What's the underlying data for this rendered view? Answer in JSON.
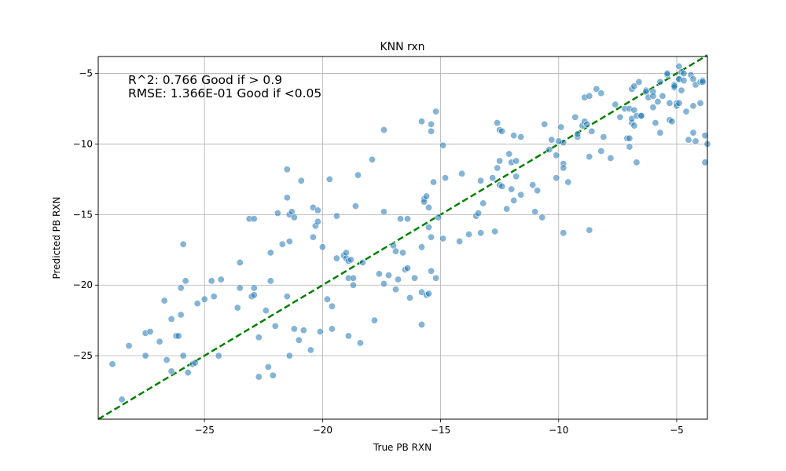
{
  "chart_data": {
    "type": "scatter",
    "title": "KNN rxn",
    "xlabel": "True PB RXN",
    "ylabel": "Predicted PB RXN",
    "xlim": [
      -29.5,
      -3.7
    ],
    "ylim": [
      -29.5,
      -3.8
    ],
    "xticks": [
      -25,
      -20,
      -15,
      -10,
      -5
    ],
    "yticks": [
      -25,
      -20,
      -15,
      -10,
      -5
    ],
    "xtick_labels": [
      "−25",
      "−20",
      "−15",
      "−10",
      "−5"
    ],
    "ytick_labels": [
      "−25",
      "−20",
      "−15",
      "−10",
      "−5"
    ],
    "grid": true,
    "point_color": "#1f77b4",
    "reference_line": {
      "style": "dashed",
      "color": "#008000",
      "from": [
        -29.5,
        -29.5
      ],
      "to": [
        -3.7,
        -3.7
      ]
    },
    "annotations": [
      "R^2: 0.766 Good if > 0.9",
      "RMSE: 1.366E-01 Good if <0.05"
    ],
    "points": [
      [
        -28.9,
        -25.6
      ],
      [
        -28.5,
        -28.1
      ],
      [
        -28.2,
        -24.3
      ],
      [
        -27.5,
        -23.4
      ],
      [
        -27.5,
        -25.0
      ],
      [
        -27.3,
        -23.3
      ],
      [
        -26.9,
        -24.0
      ],
      [
        -26.7,
        -21.1
      ],
      [
        -26.6,
        -25.3
      ],
      [
        -26.4,
        -22.4
      ],
      [
        -26.4,
        -26.1
      ],
      [
        -26.2,
        -23.6
      ],
      [
        -26.1,
        -23.6
      ],
      [
        -26.0,
        -20.2
      ],
      [
        -26.0,
        -22.1
      ],
      [
        -25.9,
        -25.0
      ],
      [
        -25.9,
        -17.1
      ],
      [
        -25.8,
        -19.7
      ],
      [
        -25.7,
        -26.2
      ],
      [
        -25.5,
        -25.6
      ],
      [
        -25.4,
        -25.5
      ],
      [
        -25.3,
        -21.3
      ],
      [
        -25.0,
        -21.0
      ],
      [
        -24.7,
        -19.7
      ],
      [
        -24.6,
        -20.8
      ],
      [
        -24.4,
        -25.0
      ],
      [
        -24.3,
        -19.6
      ],
      [
        -23.6,
        -21.6
      ],
      [
        -23.5,
        -20.2
      ],
      [
        -23.5,
        -18.4
      ],
      [
        -23.1,
        -15.3
      ],
      [
        -23.0,
        -20.8
      ],
      [
        -22.9,
        -20.2
      ],
      [
        -22.9,
        -20.7
      ],
      [
        -22.9,
        -15.3
      ],
      [
        -22.7,
        -23.7
      ],
      [
        -22.7,
        -26.5
      ],
      [
        -22.4,
        -21.8
      ],
      [
        -22.3,
        -25.8
      ],
      [
        -22.2,
        -17.7
      ],
      [
        -22.2,
        -19.7
      ],
      [
        -22.1,
        -26.4
      ],
      [
        -22.0,
        -22.9
      ],
      [
        -21.9,
        -14.9
      ],
      [
        -21.7,
        -17.1
      ],
      [
        -21.5,
        -13.8
      ],
      [
        -21.5,
        -11.8
      ],
      [
        -21.5,
        -20.8
      ],
      [
        -21.4,
        -16.9
      ],
      [
        -21.4,
        -15.0
      ],
      [
        -21.4,
        -25.0
      ],
      [
        -21.3,
        -14.8
      ],
      [
        -21.2,
        -15.2
      ],
      [
        -21.2,
        -23.1
      ],
      [
        -21.0,
        -23.9
      ],
      [
        -20.9,
        -12.6
      ],
      [
        -20.8,
        -23.2
      ],
      [
        -20.5,
        -24.6
      ],
      [
        -20.4,
        -14.5
      ],
      [
        -20.4,
        -16.6
      ],
      [
        -20.3,
        -15.8
      ],
      [
        -20.2,
        -14.7
      ],
      [
        -20.2,
        -15.5
      ],
      [
        -20.1,
        -23.3
      ],
      [
        -20.0,
        -17.3
      ],
      [
        -19.8,
        -21.0
      ],
      [
        -19.7,
        -12.5
      ],
      [
        -19.6,
        -21.5
      ],
      [
        -19.6,
        -23.1
      ],
      [
        -19.4,
        -18.1
      ],
      [
        -19.4,
        -15.1
      ],
      [
        -19.1,
        -17.9
      ],
      [
        -19.0,
        -18.1
      ],
      [
        -19.0,
        -17.7
      ],
      [
        -18.9,
        -18.3
      ],
      [
        -18.9,
        -23.6
      ],
      [
        -18.9,
        -19.5
      ],
      [
        -18.8,
        -18.2
      ],
      [
        -18.7,
        -20.0
      ],
      [
        -18.7,
        -19.5
      ],
      [
        -18.6,
        -14.4
      ],
      [
        -18.5,
        -12.2
      ],
      [
        -18.4,
        -24.1
      ],
      [
        -18.3,
        -18.4
      ],
      [
        -17.9,
        -11.1
      ],
      [
        -17.8,
        -22.5
      ],
      [
        -17.6,
        -19.2
      ],
      [
        -17.4,
        -14.8
      ],
      [
        -17.4,
        -9.0
      ],
      [
        -17.4,
        -19.9
      ],
      [
        -17.2,
        -19.3
      ],
      [
        -17.0,
        -17.2
      ],
      [
        -16.9,
        -17.6
      ],
      [
        -16.9,
        -20.3
      ],
      [
        -16.8,
        -19.6
      ],
      [
        -16.7,
        -15.3
      ],
      [
        -16.6,
        -17.7
      ],
      [
        -16.5,
        -18.9
      ],
      [
        -16.4,
        -18.8
      ],
      [
        -16.4,
        -15.3
      ],
      [
        -16.3,
        -20.9
      ],
      [
        -16.1,
        -19.5
      ],
      [
        -15.8,
        -17.3
      ],
      [
        -15.8,
        -20.5
      ],
      [
        -15.8,
        -22.8
      ],
      [
        -15.8,
        -8.4
      ],
      [
        -15.7,
        -13.9
      ],
      [
        -15.7,
        -14.1
      ],
      [
        -15.6,
        -13.7
      ],
      [
        -15.6,
        -20.7
      ],
      [
        -15.5,
        -14.5
      ],
      [
        -15.5,
        -15.9
      ],
      [
        -15.5,
        -20.6
      ],
      [
        -15.4,
        -16.6
      ],
      [
        -15.4,
        -19.0
      ],
      [
        -15.4,
        -8.6
      ],
      [
        -15.4,
        -9.1
      ],
      [
        -15.3,
        -12.7
      ],
      [
        -15.2,
        -19.5
      ],
      [
        -15.2,
        -7.7
      ],
      [
        -15.1,
        -15.2
      ],
      [
        -14.9,
        -16.7
      ],
      [
        -14.8,
        -12.4
      ],
      [
        -14.9,
        -10.1
      ],
      [
        -14.2,
        -16.9
      ],
      [
        -14.1,
        -12.1
      ],
      [
        -13.8,
        -16.4
      ],
      [
        -13.5,
        -15.1
      ],
      [
        -13.4,
        -14.9
      ],
      [
        -13.3,
        -12.6
      ],
      [
        -13.3,
        -16.3
      ],
      [
        -13.2,
        -14.2
      ],
      [
        -12.7,
        -16.2
      ],
      [
        -12.6,
        -8.5
      ],
      [
        -12.6,
        -11.7
      ],
      [
        -12.5,
        -9.0
      ],
      [
        -12.5,
        -12.9
      ],
      [
        -12.5,
        -11.2
      ],
      [
        -12.4,
        -13.0
      ],
      [
        -12.4,
        -9.1
      ],
      [
        -12.2,
        -14.6
      ],
      [
        -12.1,
        -10.7
      ],
      [
        -12.0,
        -11.3
      ],
      [
        -12.0,
        -13.2
      ],
      [
        -11.9,
        -14.0
      ],
      [
        -11.9,
        -9.4
      ],
      [
        -11.8,
        -12.3
      ],
      [
        -11.6,
        -13.6
      ],
      [
        -11.6,
        -9.5
      ],
      [
        -11.1,
        -12.9
      ],
      [
        -11.0,
        -14.8
      ],
      [
        -10.9,
        -13.3
      ],
      [
        -10.7,
        -15.2
      ],
      [
        -10.6,
        -8.6
      ],
      [
        -10.4,
        -10.4
      ],
      [
        -10.3,
        -9.7
      ],
      [
        -10.1,
        -12.4
      ],
      [
        -10.1,
        -10.8
      ],
      [
        -9.9,
        -8.8
      ],
      [
        -9.8,
        -16.3
      ],
      [
        -9.8,
        -11.4
      ],
      [
        -9.8,
        -11.7
      ],
      [
        -9.8,
        -9.9
      ],
      [
        -9.6,
        -12.7
      ],
      [
        -9.3,
        -8.1
      ],
      [
        -9.2,
        -9.5
      ],
      [
        -9.0,
        -8.7
      ],
      [
        -8.9,
        -6.7
      ],
      [
        -8.9,
        -8.4
      ],
      [
        -8.8,
        -8.6
      ],
      [
        -8.7,
        -6.6
      ],
      [
        -8.7,
        -16.1
      ],
      [
        -8.7,
        -10.9
      ],
      [
        -8.6,
        -9.1
      ],
      [
        -8.4,
        -6.1
      ],
      [
        -8.2,
        -6.4
      ],
      [
        -8.2,
        -10.5
      ],
      [
        -7.8,
        -11.0
      ],
      [
        -7.6,
        -7.2
      ],
      [
        -7.4,
        -8.1
      ],
      [
        -7.2,
        -7.5
      ],
      [
        -7.1,
        -9.6
      ],
      [
        -7.0,
        -9.6
      ],
      [
        -7.0,
        -10.2
      ],
      [
        -7.0,
        -7.5
      ],
      [
        -6.9,
        -8.5
      ],
      [
        -6.9,
        -8.2
      ],
      [
        -6.9,
        -6.1
      ],
      [
        -6.8,
        -7.6
      ],
      [
        -6.8,
        -5.9
      ],
      [
        -6.8,
        -8.7
      ],
      [
        -6.7,
        -8.0
      ],
      [
        -6.7,
        -11.3
      ],
      [
        -6.6,
        -5.6
      ],
      [
        -6.5,
        -8.0
      ],
      [
        -6.5,
        -8.0
      ],
      [
        -6.3,
        -6.2
      ],
      [
        -6.3,
        -6.3
      ],
      [
        -6.2,
        -6.7
      ],
      [
        -6.0,
        -7.4
      ],
      [
        -6.0,
        -6.3
      ],
      [
        -6.0,
        -6.6
      ],
      [
        -5.9,
        -8.5
      ],
      [
        -5.8,
        -7.0
      ],
      [
        -5.7,
        -5.6
      ],
      [
        -5.7,
        -9.2
      ],
      [
        -5.6,
        -6.6
      ],
      [
        -5.4,
        -5.1
      ],
      [
        -5.4,
        -5.0
      ],
      [
        -5.3,
        -8.3
      ],
      [
        -5.3,
        -7.1
      ],
      [
        -5.2,
        -8.4
      ],
      [
        -5.1,
        -5.8
      ],
      [
        -5.1,
        -6.0
      ],
      [
        -5.1,
        -5.9
      ],
      [
        -5.0,
        -7.1
      ],
      [
        -5.0,
        -7.3
      ],
      [
        -4.9,
        -5.4
      ],
      [
        -4.9,
        -5.4
      ],
      [
        -4.9,
        -7.1
      ],
      [
        -4.9,
        -4.5
      ],
      [
        -4.8,
        -6.2
      ],
      [
        -4.8,
        -4.9
      ],
      [
        -4.7,
        -5.0
      ],
      [
        -4.7,
        -5.5
      ],
      [
        -4.6,
        -7.7
      ],
      [
        -4.5,
        -9.7
      ],
      [
        -4.4,
        -5.1
      ],
      [
        -4.3,
        -5.4
      ],
      [
        -4.3,
        -7.3
      ],
      [
        -4.3,
        -9.2
      ],
      [
        -4.2,
        -9.8
      ],
      [
        -4.2,
        -5.8
      ],
      [
        -4.0,
        -5.6
      ],
      [
        -4.0,
        -7.1
      ],
      [
        -3.9,
        -5.5
      ],
      [
        -3.9,
        -5.6
      ],
      [
        -3.8,
        -9.4
      ],
      [
        -3.8,
        -11.3
      ],
      [
        -3.7,
        -10.0
      ],
      [
        -9.2,
        -9.3
      ],
      [
        -10.0,
        -9.8
      ],
      [
        -8.1,
        -9.5
      ],
      [
        -11.8,
        -11.2
      ],
      [
        -12.8,
        -12.4
      ]
    ]
  }
}
